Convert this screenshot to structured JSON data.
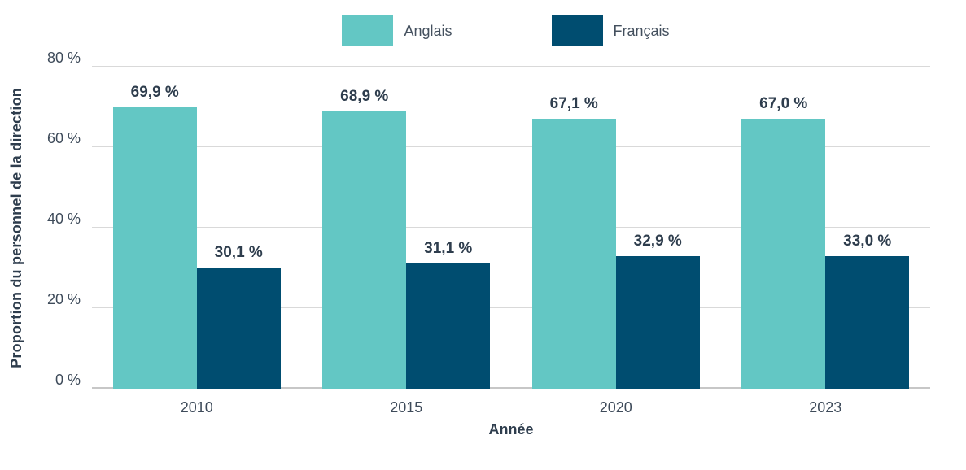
{
  "chart_data": {
    "type": "bar",
    "categories": [
      "2010",
      "2015",
      "2020",
      "2023"
    ],
    "series": [
      {
        "name": "Anglais",
        "color": "#63c7c4",
        "values": [
          69.9,
          68.9,
          67.1,
          67.0
        ],
        "labels": [
          "69,9 %",
          "68,9 %",
          "67,1 %",
          "67,0 %"
        ]
      },
      {
        "name": "Français",
        "color": "#004d70",
        "values": [
          30.1,
          31.1,
          32.9,
          33.0
        ],
        "labels": [
          "30,1 %",
          "31,1 %",
          "32,9 %",
          "33,0 %"
        ]
      }
    ],
    "title": "",
    "xlabel": "Année",
    "ylabel": "Proportion du personnel de la direction",
    "ylim": [
      0,
      80
    ],
    "yticks": [
      {
        "value": 0,
        "label": "0 %"
      },
      {
        "value": 20,
        "label": "20 %"
      },
      {
        "value": 40,
        "label": "40 %"
      },
      {
        "value": 60,
        "label": "60 %"
      },
      {
        "value": 80,
        "label": "80 %"
      }
    ],
    "legend_position": "top",
    "grid": true,
    "text_color": "#2e3d4d",
    "tick_color": "#3e4b5a"
  }
}
